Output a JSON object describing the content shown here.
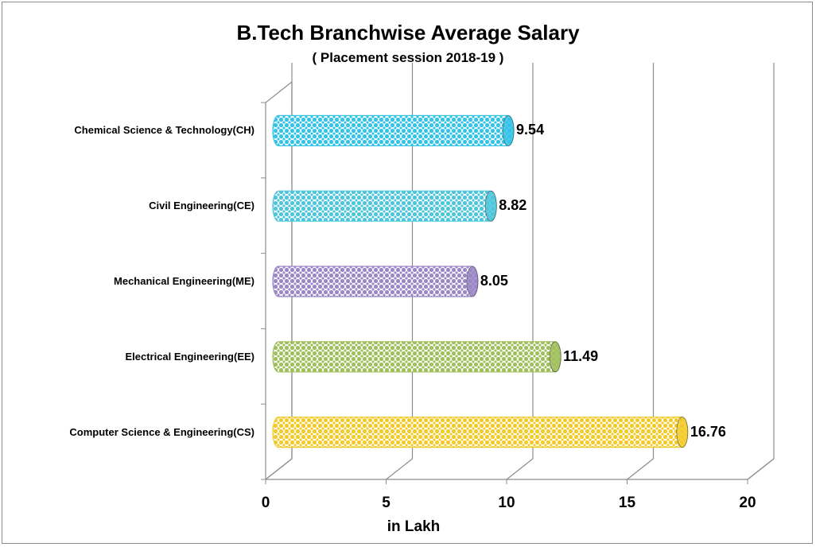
{
  "chart_data": {
    "type": "bar",
    "orientation": "horizontal",
    "title": "B.Tech Branchwise Average Salary",
    "subtitle": "( Placement session 2018-19 )",
    "xlabel": "in Lakh",
    "ylabel": "",
    "xlim": [
      0,
      20
    ],
    "x_ticks": [
      "0",
      "5",
      "10",
      "15",
      "20"
    ],
    "grid": true,
    "legend": "none",
    "categories": [
      "Chemical Science & Technology(CH)",
      "Civil Engineering(CE)",
      "Mechanical Engineering(ME)",
      "Electrical Engineering(EE)",
      "Computer Science & Engineering(CS)"
    ],
    "values": [
      9.54,
      8.82,
      8.05,
      11.49,
      16.76
    ],
    "data_labels": [
      "9.54",
      "8.82",
      "8.05",
      "11.49",
      "16.76"
    ],
    "colors": [
      "#33c3e6",
      "#4dc6dc",
      "#9b86c6",
      "#9fbf5a",
      "#f2cb2b"
    ]
  }
}
